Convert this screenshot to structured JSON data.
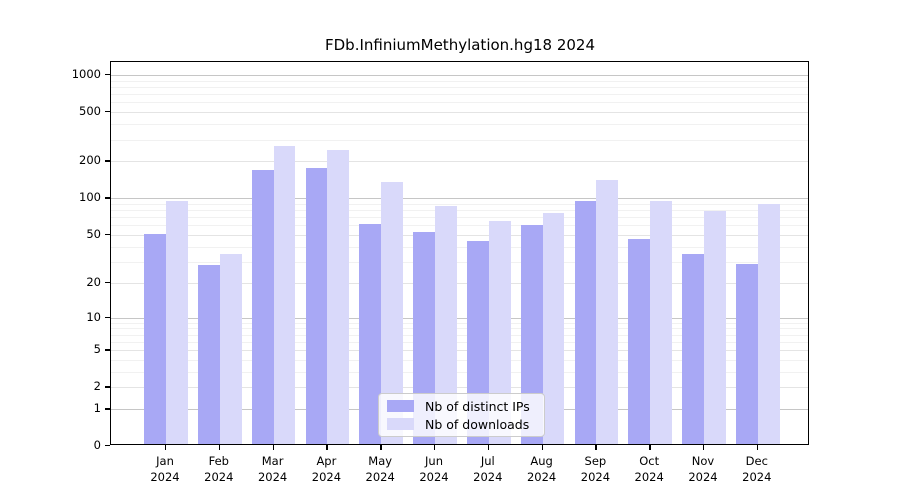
{
  "title": "FDb.InfiniumMethylation.hg18 2024",
  "chart_data": {
    "type": "bar",
    "title": "FDb.InfiniumMethylation.hg18 2024",
    "categories": [
      "Jan",
      "Feb",
      "Mar",
      "Apr",
      "May",
      "Jun",
      "Jul",
      "Aug",
      "Sep",
      "Oct",
      "Nov",
      "Dec"
    ],
    "year_label": "2024",
    "series": [
      {
        "name": "Nb of distinct IPs",
        "color": "#a8a8f5",
        "values": [
          51,
          28,
          170,
          175,
          62,
          53,
          45,
          61,
          95,
          46,
          35,
          29
        ]
      },
      {
        "name": "Nb of downloads",
        "color": "#d9d9fa",
        "values": [
          95,
          35,
          265,
          245,
          135,
          86,
          65,
          76,
          140,
          95,
          79,
          89
        ]
      }
    ],
    "xlabel": "",
    "ylabel": "",
    "y_scale": "log1p",
    "y_ticks": [
      0,
      1,
      2,
      5,
      10,
      20,
      50,
      100,
      200,
      500,
      1000
    ],
    "ylim": [
      0,
      1290
    ],
    "grid": true,
    "legend_position": "inside-bottom-center"
  },
  "style": {
    "grid_decade_color": "#c6c6c6",
    "grid_labeled_color": "#e4e4e4",
    "grid_minor_color": "#f1f1f1",
    "axis_color": "#000000",
    "background": "#ffffff"
  }
}
